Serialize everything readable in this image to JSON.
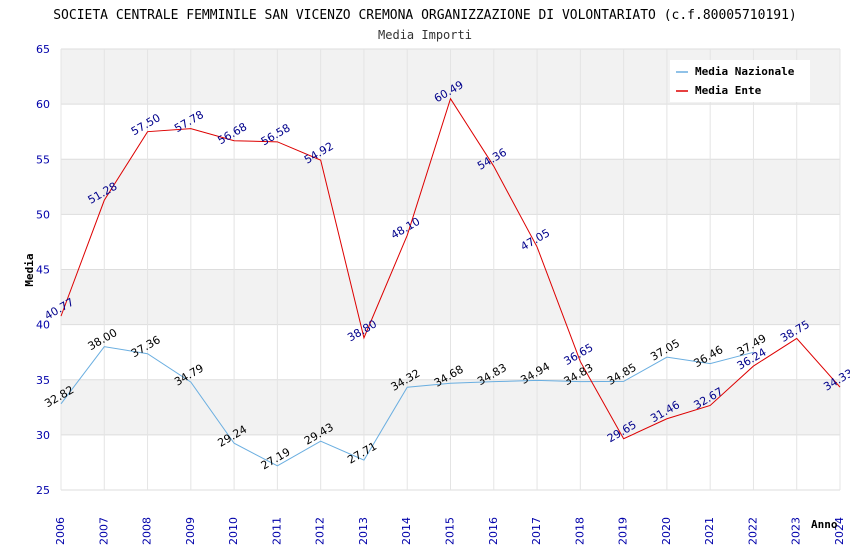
{
  "chart_data": {
    "type": "line",
    "title": "SOCIETA CENTRALE FEMMINILE SAN VICENZO CREMONA ORGANIZZAZIONE DI VOLONTARIATO (c.f.80005710191)",
    "subtitle": "Media Importi",
    "xlabel": "Anno",
    "ylabel": "Media",
    "ylim": [
      25,
      65
    ],
    "yticks": [
      25,
      30,
      35,
      40,
      45,
      50,
      55,
      60,
      65
    ],
    "categories": [
      "2006",
      "2007",
      "2008",
      "2009",
      "2010",
      "2011",
      "2012",
      "2013",
      "2014",
      "2015",
      "2016",
      "2017",
      "2018",
      "2019",
      "2020",
      "2021",
      "2022",
      "2023",
      "2024"
    ],
    "grid": true,
    "legend_position": "top-right",
    "series": [
      {
        "name": "Media Nazionale",
        "color": "#6aaee0",
        "label_color": "#000000",
        "values": [
          32.82,
          38.0,
          37.36,
          34.79,
          29.24,
          27.19,
          29.43,
          27.71,
          34.32,
          34.68,
          34.83,
          34.94,
          34.83,
          34.85,
          37.05,
          36.46,
          37.49,
          null,
          null
        ],
        "labels": [
          "32.82",
          "38.00",
          "37.36",
          "34.79",
          "29.24",
          "27.19",
          "29.43",
          "27.71",
          "34.32",
          "34.68",
          "34.83",
          "34.94",
          "34.83",
          "34.85",
          "37.05",
          "36.46",
          "37.49",
          "",
          ""
        ]
      },
      {
        "name": "Media Ente",
        "color": "#dd0000",
        "label_color": "#00008b",
        "values": [
          40.77,
          51.28,
          57.5,
          57.78,
          56.68,
          56.58,
          54.92,
          38.8,
          48.1,
          60.49,
          54.36,
          47.05,
          36.65,
          29.65,
          31.46,
          32.67,
          36.24,
          38.75,
          34.33
        ],
        "labels": [
          "40.77",
          "51.28",
          "57.50",
          "57.78",
          "56.68",
          "56.58",
          "54.92",
          "38.80",
          "48.10",
          "60.49",
          "54.36",
          "47.05",
          "36.65",
          "29.65",
          "31.46",
          "32.67",
          "36.24",
          "38.75",
          "34.33"
        ]
      }
    ]
  }
}
